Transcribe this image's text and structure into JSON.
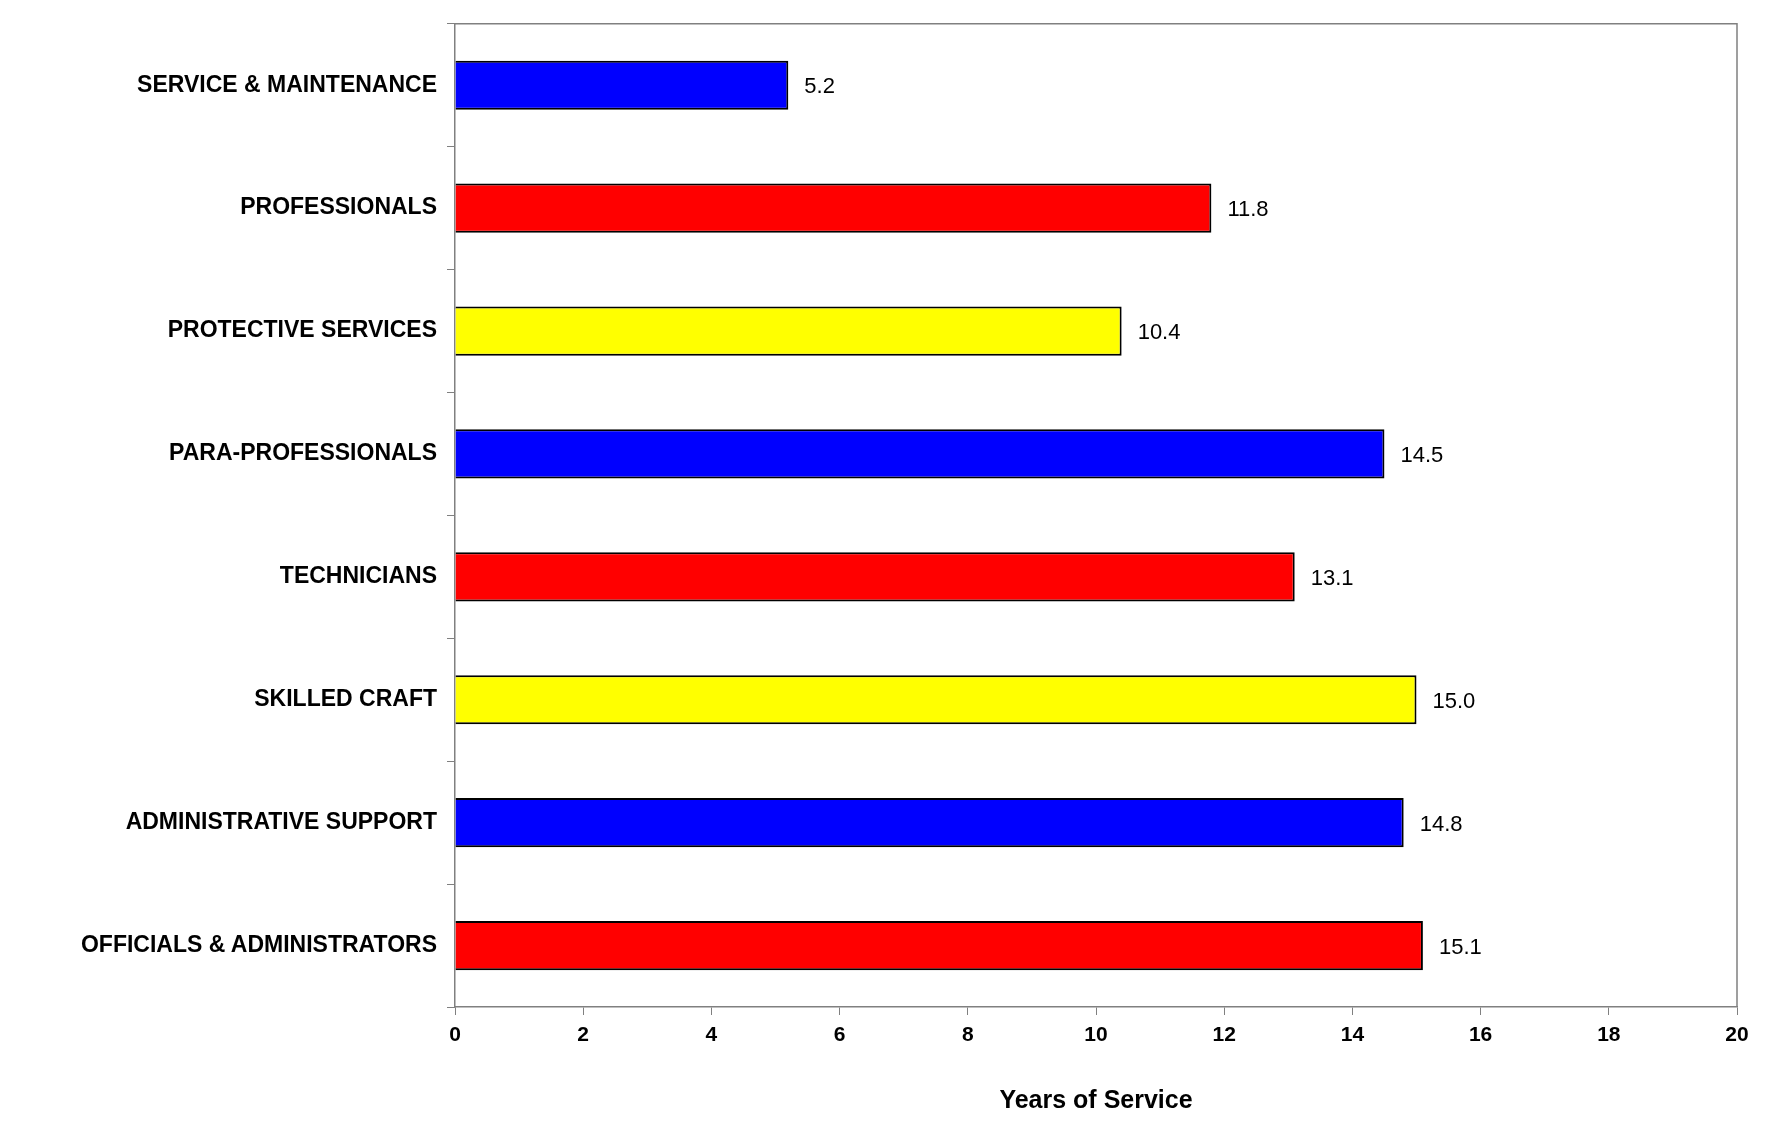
{
  "chart_data": {
    "type": "bar",
    "orientation": "horizontal",
    "xlabel": "Years of Service",
    "categories": [
      "SERVICE & MAINTENANCE",
      "PROFESSIONALS",
      "PROTECTIVE SERVICES",
      "PARA-PROFESSIONALS",
      "TECHNICIANS",
      "SKILLED CRAFT",
      "ADMINISTRATIVE SUPPORT",
      "OFFICIALS & ADMINISTRATORS"
    ],
    "values": [
      5.2,
      11.8,
      10.4,
      14.5,
      13.1,
      15.0,
      14.8,
      15.1
    ],
    "value_labels": [
      "5.2",
      "11.8",
      "10.4",
      "14.5",
      "13.1",
      "15.0",
      "14.8",
      "15.1"
    ],
    "colors": [
      "#0000ff",
      "#ff0000",
      "#ffff00",
      "#0000ff",
      "#ff0000",
      "#ffff00",
      "#0000ff",
      "#ff0000"
    ],
    "xlim": [
      0,
      20
    ],
    "xticks": [
      0,
      2,
      4,
      6,
      8,
      10,
      12,
      14,
      16,
      18,
      20
    ]
  }
}
